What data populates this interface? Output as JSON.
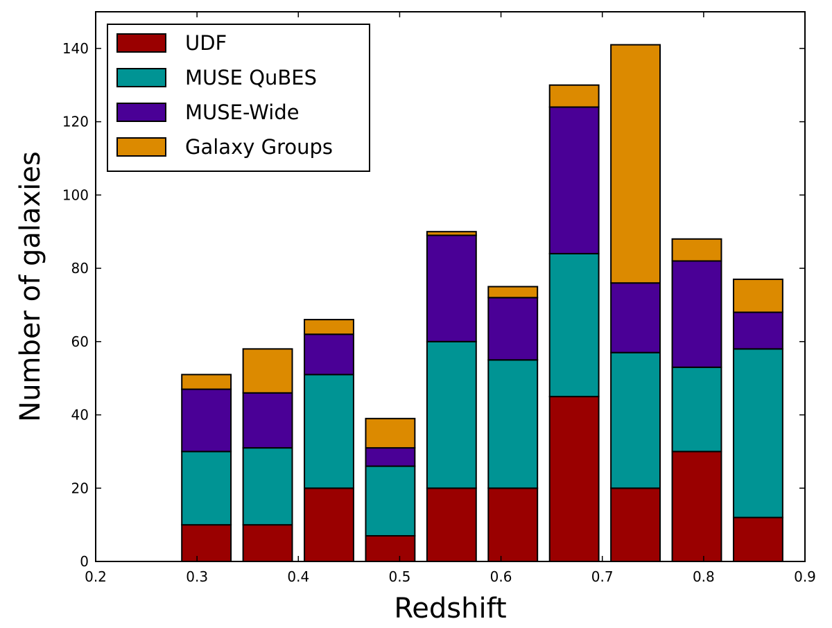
{
  "chart_data": {
    "type": "bar",
    "stacked": true,
    "title": "",
    "xlabel": "Redshift",
    "ylabel": "Number of galaxies",
    "xlim": [
      0.2,
      0.9
    ],
    "ylim": [
      0,
      150
    ],
    "xticks": [
      0.2,
      0.3,
      0.4,
      0.5,
      0.6,
      0.7,
      0.8,
      0.9
    ],
    "xtick_labels": [
      "0.2",
      "0.3",
      "0.4",
      "0.5",
      "0.6",
      "0.7",
      "0.8",
      "0.9"
    ],
    "yticks": [
      0,
      20,
      40,
      60,
      80,
      100,
      120,
      140
    ],
    "ytick_labels": [
      "0",
      "20",
      "40",
      "60",
      "80",
      "100",
      "120",
      "140"
    ],
    "bin_starts": [
      0.285,
      0.3455,
      0.406,
      0.4665,
      0.527,
      0.5875,
      0.648,
      0.7085,
      0.769,
      0.8295
    ],
    "bar_width": 0.0485,
    "legend_position": "top-left",
    "series": [
      {
        "name": "UDF",
        "color": "#9a0000",
        "values": [
          10,
          10,
          20,
          7,
          20,
          20,
          45,
          20,
          30,
          12
        ]
      },
      {
        "name": "MUSE QuBES",
        "color": "#009494",
        "values": [
          20,
          21,
          31,
          19,
          40,
          35,
          39,
          37,
          23,
          46
        ]
      },
      {
        "name": "MUSE-Wide",
        "color": "#4a0096",
        "values": [
          17,
          15,
          11,
          5,
          29,
          17,
          40,
          19,
          29,
          10
        ]
      },
      {
        "name": "Galaxy Groups",
        "color": "#dc8a00",
        "values": [
          4,
          12,
          4,
          8,
          1,
          3,
          6,
          65,
          6,
          9
        ]
      }
    ]
  }
}
